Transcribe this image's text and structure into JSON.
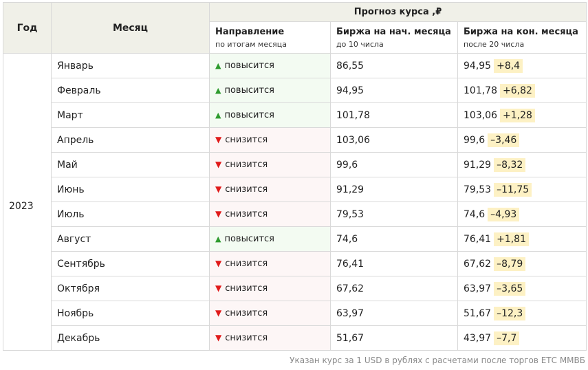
{
  "header": {
    "year": "Год",
    "month": "Месяц",
    "forecast_title": "Прогноз курса ,₽",
    "direction_title": "Направление",
    "direction_note": "по итогам месяца",
    "start_title": "Биржа на нач. месяца",
    "start_note": "до 10 числа",
    "end_title": "Биржа на кон. месяца",
    "end_note": "после 20 числа"
  },
  "year_value": "2023",
  "rows": [
    {
      "month": "Январь",
      "trend": "up",
      "arrow": "▲",
      "direction": "повысится",
      "start": "86,55",
      "end": "94,95",
      "delta": "+8,4"
    },
    {
      "month": "Февраль",
      "trend": "up",
      "arrow": "▲",
      "direction": "повысится",
      "start": "94,95",
      "end": "101,78",
      "delta": "+6,82"
    },
    {
      "month": "Март",
      "trend": "up",
      "arrow": "▲",
      "direction": "повысится",
      "start": "101,78",
      "end": "103,06",
      "delta": "+1,28"
    },
    {
      "month": "Апрель",
      "trend": "down",
      "arrow": "▼",
      "direction": "снизится",
      "start": "103,06",
      "end": "99,6",
      "delta": "–3,46"
    },
    {
      "month": "Май",
      "trend": "down",
      "arrow": "▼",
      "direction": "снизится",
      "start": "99,6",
      "end": "91,29",
      "delta": "–8,32"
    },
    {
      "month": "Июнь",
      "trend": "down",
      "arrow": "▼",
      "direction": "снизится",
      "start": "91,29",
      "end": "79,53",
      "delta": "–11,75"
    },
    {
      "month": "Июль",
      "trend": "down",
      "arrow": "▼",
      "direction": "снизится",
      "start": "79,53",
      "end": "74,6",
      "delta": "–4,93"
    },
    {
      "month": "Август",
      "trend": "up",
      "arrow": "▲",
      "direction": "повысится",
      "start": "74,6",
      "end": "76,41",
      "delta": "+1,81"
    },
    {
      "month": "Сентябрь",
      "trend": "down",
      "arrow": "▼",
      "direction": "снизится",
      "start": "76,41",
      "end": "67,62",
      "delta": "–8,79"
    },
    {
      "month": "Октября",
      "trend": "down",
      "arrow": "▼",
      "direction": "снизится",
      "start": "67,62",
      "end": "63,97",
      "delta": "–3,65"
    },
    {
      "month": "Ноябрь",
      "trend": "down",
      "arrow": "▼",
      "direction": "снизится",
      "start": "63,97",
      "end": "51,67",
      "delta": "–12,3"
    },
    {
      "month": "Декабрь",
      "trend": "down",
      "arrow": "▼",
      "direction": "снизится",
      "start": "51,67",
      "end": "43,97",
      "delta": "–7,7"
    }
  ],
  "footnote": "Указан курс за 1 USD в рублях с расчетами после торгов ЕТС ММВБ",
  "colors": {
    "up_arrow": "#2e9b2e",
    "down_arrow": "#e01a1a",
    "delta_highlight": "#fdf1c4",
    "header_bg": "#f0f0e8"
  }
}
